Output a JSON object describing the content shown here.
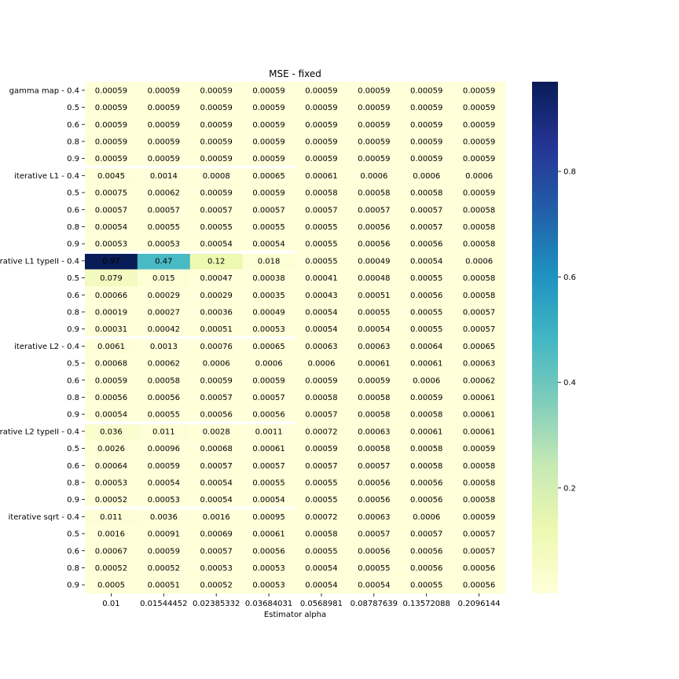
{
  "chart_data": {
    "type": "heatmap",
    "title": "MSE - fixed",
    "xlabel": "Estimator alpha",
    "ylabel": "",
    "x_tick_labels": [
      "0.01",
      "0.01544452",
      "0.02385332",
      "0.03684031",
      "0.0568981",
      "0.08787639",
      "0.13572088",
      "0.2096144"
    ],
    "y_tick_labels": [
      "gamma map - 0.4",
      "0.5",
      "0.6",
      "0.8",
      "0.9",
      "iterative L1 - 0.4",
      "0.5",
      "0.6",
      "0.8",
      "0.9",
      "rative L1 typeII - 0.4",
      "0.5",
      "0.6",
      "0.8",
      "0.9",
      "iterative L2 - 0.4",
      "0.5",
      "0.6",
      "0.8",
      "0.9",
      "rative L2 typeII - 0.4",
      "0.5",
      "0.6",
      "0.8",
      "0.9",
      "iterative sqrt - 0.4",
      "0.5",
      "0.6",
      "0.8",
      "0.9"
    ],
    "cell_labels": [
      [
        "0.00059",
        "0.00059",
        "0.00059",
        "0.00059",
        "0.00059",
        "0.00059",
        "0.00059",
        "0.00059"
      ],
      [
        "0.00059",
        "0.00059",
        "0.00059",
        "0.00059",
        "0.00059",
        "0.00059",
        "0.00059",
        "0.00059"
      ],
      [
        "0.00059",
        "0.00059",
        "0.00059",
        "0.00059",
        "0.00059",
        "0.00059",
        "0.00059",
        "0.00059"
      ],
      [
        "0.00059",
        "0.00059",
        "0.00059",
        "0.00059",
        "0.00059",
        "0.00059",
        "0.00059",
        "0.00059"
      ],
      [
        "0.00059",
        "0.00059",
        "0.00059",
        "0.00059",
        "0.00059",
        "0.00059",
        "0.00059",
        "0.00059"
      ],
      [
        "0.0045",
        "0.0014",
        "0.0008",
        "0.00065",
        "0.00061",
        "0.0006",
        "0.0006",
        "0.0006"
      ],
      [
        "0.00075",
        "0.00062",
        "0.00059",
        "0.00059",
        "0.00058",
        "0.00058",
        "0.00058",
        "0.00059"
      ],
      [
        "0.00057",
        "0.00057",
        "0.00057",
        "0.00057",
        "0.00057",
        "0.00057",
        "0.00057",
        "0.00058"
      ],
      [
        "0.00054",
        "0.00055",
        "0.00055",
        "0.00055",
        "0.00055",
        "0.00056",
        "0.00057",
        "0.00058"
      ],
      [
        "0.00053",
        "0.00053",
        "0.00054",
        "0.00054",
        "0.00055",
        "0.00056",
        "0.00056",
        "0.00058"
      ],
      [
        "0.97",
        "0.47",
        "0.12",
        "0.018",
        "0.00055",
        "0.00049",
        "0.00054",
        "0.0006"
      ],
      [
        "0.079",
        "0.015",
        "0.00047",
        "0.00038",
        "0.00041",
        "0.00048",
        "0.00055",
        "0.00058"
      ],
      [
        "0.00066",
        "0.00029",
        "0.00029",
        "0.00035",
        "0.00043",
        "0.00051",
        "0.00056",
        "0.00058"
      ],
      [
        "0.00019",
        "0.00027",
        "0.00036",
        "0.00049",
        "0.00054",
        "0.00055",
        "0.00055",
        "0.00057"
      ],
      [
        "0.00031",
        "0.00042",
        "0.00051",
        "0.00053",
        "0.00054",
        "0.00054",
        "0.00055",
        "0.00057"
      ],
      [
        "0.0061",
        "0.0013",
        "0.00076",
        "0.00065",
        "0.00063",
        "0.00063",
        "0.00064",
        "0.00065"
      ],
      [
        "0.00068",
        "0.00062",
        "0.0006",
        "0.0006",
        "0.0006",
        "0.00061",
        "0.00061",
        "0.00063"
      ],
      [
        "0.00059",
        "0.00058",
        "0.00059",
        "0.00059",
        "0.00059",
        "0.00059",
        "0.0006",
        "0.00062"
      ],
      [
        "0.00056",
        "0.00056",
        "0.00057",
        "0.00057",
        "0.00058",
        "0.00058",
        "0.00059",
        "0.00061"
      ],
      [
        "0.00054",
        "0.00055",
        "0.00056",
        "0.00056",
        "0.00057",
        "0.00058",
        "0.00058",
        "0.00061"
      ],
      [
        "0.036",
        "0.011",
        "0.0028",
        "0.0011",
        "0.00072",
        "0.00063",
        "0.00061",
        "0.00061"
      ],
      [
        "0.0026",
        "0.00096",
        "0.00068",
        "0.00061",
        "0.00059",
        "0.00058",
        "0.00058",
        "0.00059"
      ],
      [
        "0.00064",
        "0.00059",
        "0.00057",
        "0.00057",
        "0.00057",
        "0.00057",
        "0.00058",
        "0.00058"
      ],
      [
        "0.00053",
        "0.00054",
        "0.00054",
        "0.00055",
        "0.00055",
        "0.00056",
        "0.00056",
        "0.00058"
      ],
      [
        "0.00052",
        "0.00053",
        "0.00054",
        "0.00054",
        "0.00055",
        "0.00056",
        "0.00056",
        "0.00058"
      ],
      [
        "0.011",
        "0.0036",
        "0.0016",
        "0.00095",
        "0.00072",
        "0.00063",
        "0.0006",
        "0.00059"
      ],
      [
        "0.0016",
        "0.00091",
        "0.00069",
        "0.00061",
        "0.00058",
        "0.00057",
        "0.00057",
        "0.00057"
      ],
      [
        "0.00067",
        "0.00059",
        "0.00057",
        "0.00056",
        "0.00055",
        "0.00056",
        "0.00056",
        "0.00057"
      ],
      [
        "0.00052",
        "0.00052",
        "0.00053",
        "0.00053",
        "0.00054",
        "0.00055",
        "0.00056",
        "0.00056"
      ],
      [
        "0.0005",
        "0.00051",
        "0.00052",
        "0.00053",
        "0.00054",
        "0.00054",
        "0.00055",
        "0.00056"
      ]
    ],
    "value_range": [
      0.00019,
      0.97
    ],
    "colormap": "YlGnBu",
    "colorbar_ticks": [
      "0.2",
      "0.4",
      "0.6",
      "0.8"
    ],
    "colorbar_tick_values": [
      0.2,
      0.4,
      0.6,
      0.8
    ],
    "group_separator_color": "#ffffff",
    "annotation_dark_text": "#262626",
    "annotation_light_text": "#ffffff"
  }
}
